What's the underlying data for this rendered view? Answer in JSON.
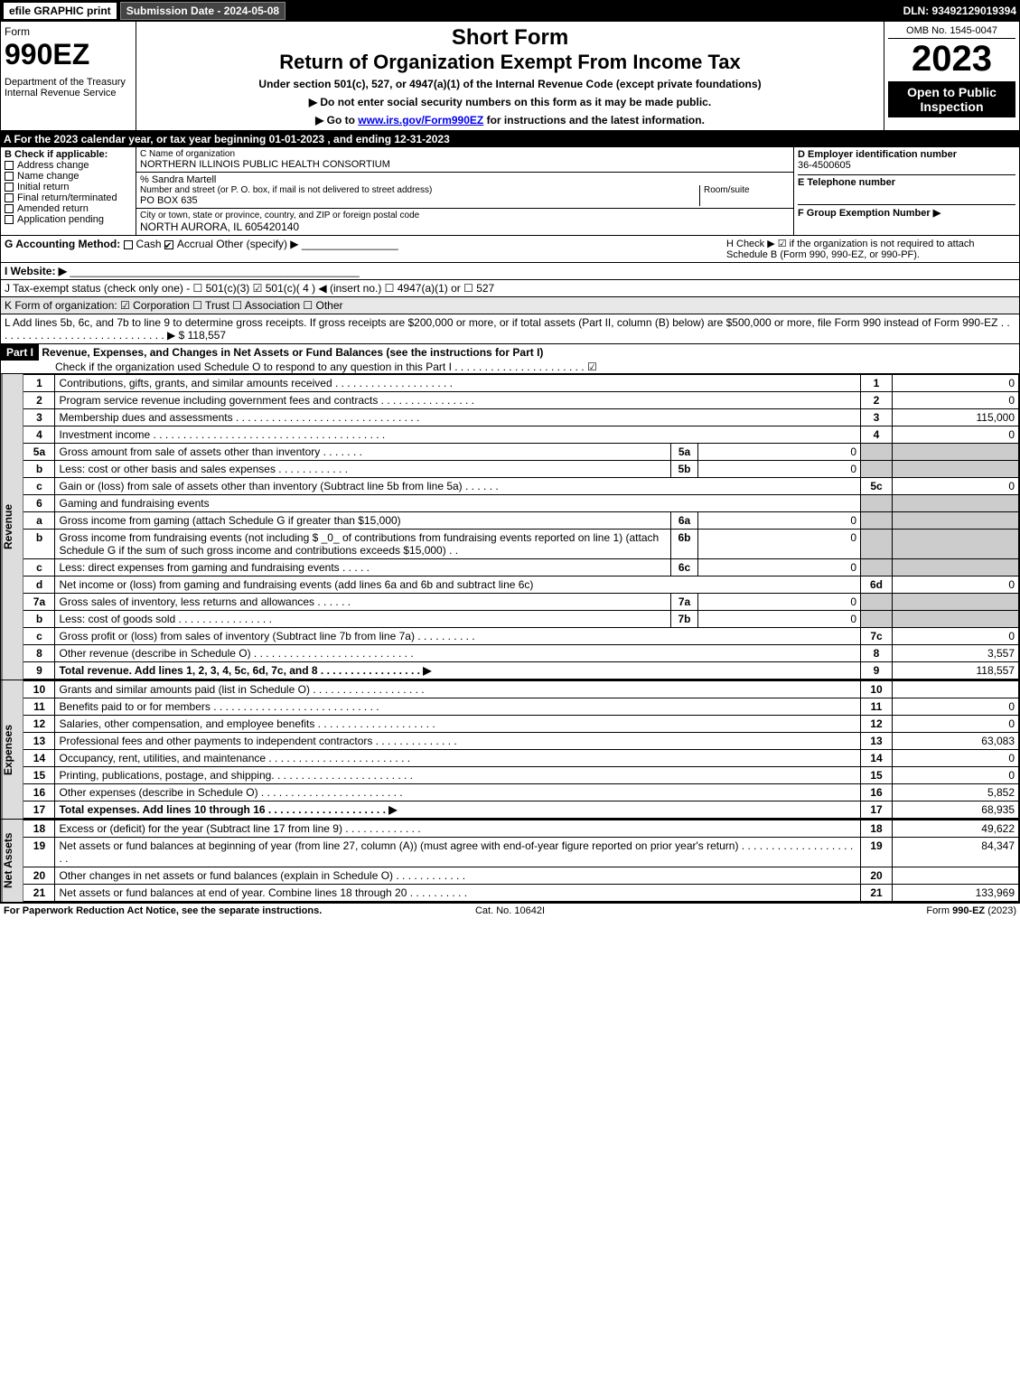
{
  "topbar": {
    "efile": "efile GRAPHIC print",
    "submission_label": "Submission Date - 2024-05-08",
    "dln": "DLN: 93492129019394"
  },
  "header": {
    "form_word": "Form",
    "form_num": "990EZ",
    "dept": "Department of the Treasury\nInternal Revenue Service",
    "short_form": "Short Form",
    "title": "Return of Organization Exempt From Income Tax",
    "subtitle": "Under section 501(c), 527, or 4947(a)(1) of the Internal Revenue Code (except private foundations)",
    "note1": "▶ Do not enter social security numbers on this form as it may be made public.",
    "note2": "▶ Go to www.irs.gov/Form990EZ for instructions and the latest information.",
    "omb": "OMB No. 1545-0047",
    "year": "2023",
    "open": "Open to Public Inspection"
  },
  "section_a": "A  For the 2023 calendar year, or tax year beginning 01-01-2023 , and ending 12-31-2023",
  "section_b": {
    "label": "B  Check if applicable:",
    "items": [
      "Address change",
      "Name change",
      "Initial return",
      "Final return/terminated",
      "Amended return",
      "Application pending"
    ]
  },
  "section_c": {
    "name_label": "C Name of organization",
    "name": "NORTHERN ILLINOIS PUBLIC HEALTH CONSORTIUM",
    "care_of": "% Sandra Martell",
    "street_label": "Number and street (or P. O. box, if mail is not delivered to street address)",
    "room_label": "Room/suite",
    "street": "PO BOX 635",
    "city_label": "City or town, state or province, country, and ZIP or foreign postal code",
    "city": "NORTH AURORA, IL  605420140"
  },
  "section_d": {
    "label": "D Employer identification number",
    "value": "36-4500605",
    "e_label": "E Telephone number",
    "f_label": "F Group Exemption Number  ▶"
  },
  "section_g": {
    "label": "G Accounting Method:",
    "cash": "Cash",
    "accrual": "Accrual",
    "other": "Other (specify) ▶"
  },
  "section_h": "H  Check ▶ ☑ if the organization is not required to attach Schedule B (Form 990, 990-EZ, or 990-PF).",
  "section_i": "I Website: ▶",
  "section_j": "J Tax-exempt status (check only one) - ☐ 501(c)(3)  ☑ 501(c)( 4 ) ◀ (insert no.)  ☐ 4947(a)(1) or  ☐ 527",
  "section_k": "K Form of organization:  ☑ Corporation   ☐ Trust   ☐ Association   ☐ Other",
  "section_l": {
    "text": "L Add lines 5b, 6c, and 7b to line 9 to determine gross receipts. If gross receipts are $200,000 or more, or if total assets (Part II, column (B) below) are $500,000 or more, file Form 990 instead of Form 990-EZ  .  .  .  .  .  .  .  .  .  .  .  .  .  .  .  .  .  .  .  .  .  .  .  .  .  .  .  .  . ▶",
    "value": "$ 118,557"
  },
  "part1": {
    "header": "Part I",
    "title": "Revenue, Expenses, and Changes in Net Assets or Fund Balances (see the instructions for Part I)",
    "check": "Check if the organization used Schedule O to respond to any question in this Part I  .  .  .  .  .  .  .  .  .  .  .  .  .  .  .  .  .  .  .  .  .  .  ☑"
  },
  "side_labels": {
    "revenue": "Revenue",
    "expenses": "Expenses",
    "net_assets": "Net Assets"
  },
  "revenue_lines": [
    {
      "num": "1",
      "desc": "Contributions, gifts, grants, and similar amounts received  .  .  .  .  .  .  .  .  .  .  .  .  .  .  .  .  .  .  .  .",
      "line": "1",
      "val": "0"
    },
    {
      "num": "2",
      "desc": "Program service revenue including government fees and contracts  .  .  .  .  .  .  .  .  .  .  .  .  .  .  .  .",
      "line": "2",
      "val": "0"
    },
    {
      "num": "3",
      "desc": "Membership dues and assessments  .  .  .  .  .  .  .  .  .  .  .  .  .  .  .  .  .  .  .  .  .  .  .  .  .  .  .  .  .  .  .",
      "line": "3",
      "val": "115,000"
    },
    {
      "num": "4",
      "desc": "Investment income  .  .  .  .  .  .  .  .  .  .  .  .  .  .  .  .  .  .  .  .  .  .  .  .  .  .  .  .  .  .  .  .  .  .  .  .  .  .  .",
      "line": "4",
      "val": "0"
    },
    {
      "num": "5a",
      "desc": "Gross amount from sale of assets other than inventory  .  .  .  .  .  .  .",
      "sub": "5a",
      "subval": "0"
    },
    {
      "num": "b",
      "desc": "Less: cost or other basis and sales expenses  .  .  .  .  .  .  .  .  .  .  .  .",
      "sub": "5b",
      "subval": "0"
    },
    {
      "num": "c",
      "desc": "Gain or (loss) from sale of assets other than inventory (Subtract line 5b from line 5a)  .  .  .  .  .  .",
      "line": "5c",
      "val": "0"
    },
    {
      "num": "6",
      "desc": "Gaming and fundraising events"
    },
    {
      "num": "a",
      "desc": "Gross income from gaming (attach Schedule G if greater than $15,000)",
      "sub": "6a",
      "subval": "0"
    },
    {
      "num": "b",
      "desc": "Gross income from fundraising events (not including $ _0_ of contributions from fundraising events reported on line 1) (attach Schedule G if the sum of such gross income and contributions exceeds $15,000)   .  .",
      "sub": "6b",
      "subval": "0"
    },
    {
      "num": "c",
      "desc": "Less: direct expenses from gaming and fundraising events   .  .  .  .  .",
      "sub": "6c",
      "subval": "0"
    },
    {
      "num": "d",
      "desc": "Net income or (loss) from gaming and fundraising events (add lines 6a and 6b and subtract line 6c)",
      "line": "6d",
      "val": "0"
    },
    {
      "num": "7a",
      "desc": "Gross sales of inventory, less returns and allowances  .  .  .  .  .  .",
      "sub": "7a",
      "subval": "0"
    },
    {
      "num": "b",
      "desc": "Less: cost of goods sold   .  .  .  .  .  .  .  .  .  .  .  .  .  .  .  .",
      "sub": "7b",
      "subval": "0"
    },
    {
      "num": "c",
      "desc": "Gross profit or (loss) from sales of inventory (Subtract line 7b from line 7a)  .  .  .  .  .  .  .  .  .  .",
      "line": "7c",
      "val": "0"
    },
    {
      "num": "8",
      "desc": "Other revenue (describe in Schedule O)  .  .  .  .  .  .  .  .  .  .  .  .  .  .  .  .  .  .  .  .  .  .  .  .  .  .  .",
      "line": "8",
      "val": "3,557"
    },
    {
      "num": "9",
      "desc": "Total revenue. Add lines 1, 2, 3, 4, 5c, 6d, 7c, and 8  .  .  .  .  .  .  .  .  .  .  .  .  .  .  .  .  .  ▶",
      "line": "9",
      "val": "118,557",
      "bold": true
    }
  ],
  "expense_lines": [
    {
      "num": "10",
      "desc": "Grants and similar amounts paid (list in Schedule O)  .  .  .  .  .  .  .  .  .  .  .  .  .  .  .  .  .  .  .",
      "line": "10",
      "val": ""
    },
    {
      "num": "11",
      "desc": "Benefits paid to or for members   .  .  .  .  .  .  .  .  .  .  .  .  .  .  .  .  .  .  .  .  .  .  .  .  .  .  .  .",
      "line": "11",
      "val": "0"
    },
    {
      "num": "12",
      "desc": "Salaries, other compensation, and employee benefits  .  .  .  .  .  .  .  .  .  .  .  .  .  .  .  .  .  .  .  .",
      "line": "12",
      "val": "0"
    },
    {
      "num": "13",
      "desc": "Professional fees and other payments to independent contractors  .  .  .  .  .  .  .  .  .  .  .  .  .  .",
      "line": "13",
      "val": "63,083"
    },
    {
      "num": "14",
      "desc": "Occupancy, rent, utilities, and maintenance .  .  .  .  .  .  .  .  .  .  .  .  .  .  .  .  .  .  .  .  .  .  .  .",
      "line": "14",
      "val": "0"
    },
    {
      "num": "15",
      "desc": "Printing, publications, postage, and shipping.  .  .  .  .  .  .  .  .  .  .  .  .  .  .  .  .  .  .  .  .  .  .  .",
      "line": "15",
      "val": "0"
    },
    {
      "num": "16",
      "desc": "Other expenses (describe in Schedule O)   .  .  .  .  .  .  .  .  .  .  .  .  .  .  .  .  .  .  .  .  .  .  .  .",
      "line": "16",
      "val": "5,852"
    },
    {
      "num": "17",
      "desc": "Total expenses. Add lines 10 through 16   .  .  .  .  .  .  .  .  .  .  .  .  .  .  .  .  .  .  .  .  ▶",
      "line": "17",
      "val": "68,935",
      "bold": true
    }
  ],
  "net_lines": [
    {
      "num": "18",
      "desc": "Excess or (deficit) for the year (Subtract line 17 from line 9)   .  .  .  .  .  .  .  .  .  .  .  .  .",
      "line": "18",
      "val": "49,622"
    },
    {
      "num": "19",
      "desc": "Net assets or fund balances at beginning of year (from line 27, column (A)) (must agree with end-of-year figure reported on prior year's return) .  .  .  .  .  .  .  .  .  .  .  .  .  .  .  .  .  .  .  .  .",
      "line": "19",
      "val": "84,347"
    },
    {
      "num": "20",
      "desc": "Other changes in net assets or fund balances (explain in Schedule O)  .  .  .  .  .  .  .  .  .  .  .  .",
      "line": "20",
      "val": ""
    },
    {
      "num": "21",
      "desc": "Net assets or fund balances at end of year. Combine lines 18 through 20  .  .  .  .  .  .  .  .  .  .",
      "line": "21",
      "val": "133,969"
    }
  ],
  "footer": {
    "left": "For Paperwork Reduction Act Notice, see the separate instructions.",
    "mid": "Cat. No. 10642I",
    "right": "Form 990-EZ (2023)"
  }
}
